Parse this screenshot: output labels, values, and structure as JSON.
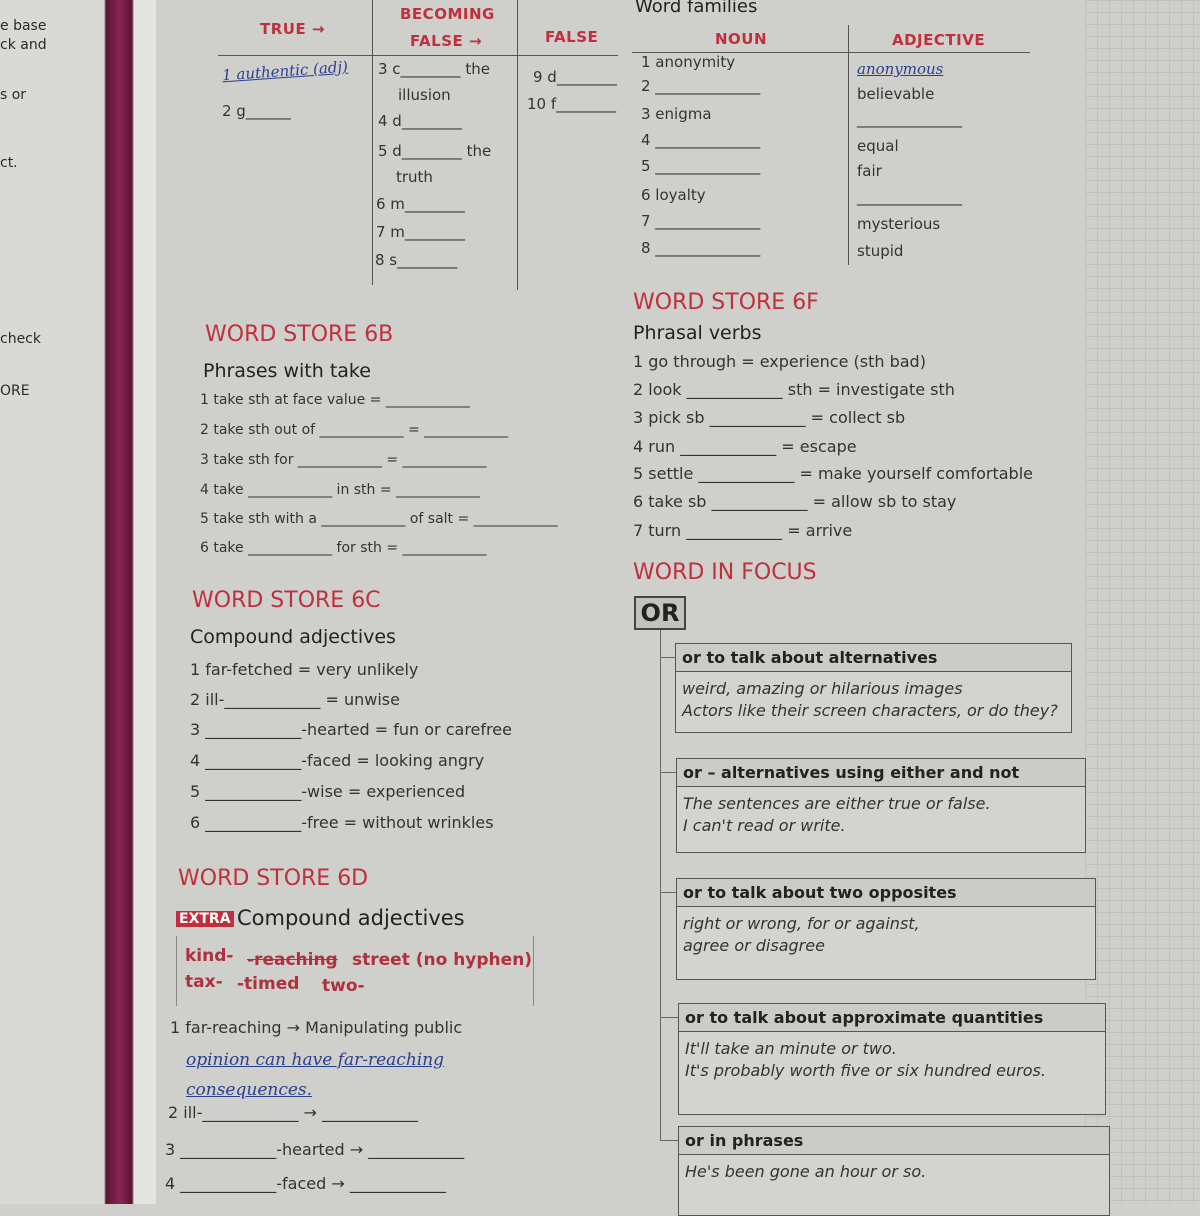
{
  "left_page": {
    "fragments": [
      "e base",
      "ck and",
      "s or",
      "ct.",
      "check",
      "ORE"
    ]
  },
  "truth_table": {
    "header_truth": "TRUE →",
    "header_becoming_1": "BECOMING",
    "header_becoming_2": "FALSE →",
    "header_false": "FALSE",
    "true_items": [
      "1 authentic (adj)",
      "2 g______"
    ],
    "becoming_items": [
      "3 c________ the",
      "illusion",
      "4 d________",
      "5 d________ the",
      "truth",
      "6 m________",
      "7 m________",
      "8 s________"
    ],
    "false_items": [
      "9 d________",
      "10 f________"
    ]
  },
  "word_families": {
    "title": "Word families",
    "noun_header": "NOUN",
    "adjective_header": "ADJECTIVE",
    "nouns": [
      "1  anonymity",
      "2  ______________",
      "3  enigma",
      "4  ______________",
      "5  ______________",
      "6  loyalty",
      "7  ______________",
      "8  ______________"
    ],
    "adjectives": [
      "anonymous",
      "believable",
      "______________",
      "equal",
      "fair",
      "______________",
      "mysterious",
      "stupid"
    ]
  },
  "ws6b": {
    "title": "WORD STORE 6B",
    "subtitle": "Phrases with take",
    "items": [
      "1  take sth at face value = ____________",
      "2  take sth out of ____________ = ____________",
      "3  take sth for ____________ = ____________",
      "4  take ____________ in sth = ____________",
      "5  take sth with a ____________ of salt = ____________",
      "6  take ____________ for sth = ____________"
    ]
  },
  "ws6c": {
    "title": "WORD STORE 6C",
    "subtitle": "Compound adjectives",
    "items": [
      "1  far-fetched = very unlikely",
      "2  ill-____________ = unwise",
      "3  ____________-hearted = fun or carefree",
      "4  ____________-faced = looking angry",
      "5  ____________-wise = experienced",
      "6  ____________-free = without wrinkles"
    ]
  },
  "ws6d": {
    "title": "WORD STORE 6D",
    "badge": "EXTRA",
    "subtitle": "Compound adjectives",
    "box_words": [
      "kind-",
      "-reaching",
      "street (no hyphen)",
      "tax-",
      "-timed",
      "two-"
    ],
    "items": [
      "1  far-reaching → Manipulating public",
      "opinion can have far-reaching",
      "consequences.",
      "2  ill-____________ → ____________",
      "3  ____________-hearted → ____________",
      "4  ____________-faced → ____________"
    ]
  },
  "ws6f": {
    "title": "WORD STORE 6F",
    "subtitle": "Phrasal verbs",
    "items": [
      "1  go through = experience (sth bad)",
      "2  look ____________ sth = investigate sth",
      "3  pick sb ____________ = collect sb",
      "4  run ____________ = escape",
      "5  settle ____________ = make yourself comfortable",
      "6  take sb ____________ = allow sb to stay",
      "7  turn ____________ = arrive"
    ]
  },
  "word_in_focus": {
    "title": "WORD IN FOCUS",
    "word": "OR",
    "boxes": [
      {
        "header": "or to talk about alternatives",
        "lines": [
          "weird, amazing or hilarious images",
          "Actors like their screen characters, or do they?"
        ]
      },
      {
        "header": "or – alternatives using either and not",
        "lines": [
          "The sentences are either true or false.",
          "I can't read or write."
        ]
      },
      {
        "header": "or to talk about two opposites",
        "lines": [
          "right or wrong, for or against,",
          "agree or disagree"
        ]
      },
      {
        "header": "or to talk about approximate quantities",
        "lines": [
          "It'll take an minute or two.",
          "It's probably worth five or six hundred euros."
        ]
      },
      {
        "header": "or in phrases",
        "lines": [
          "He's been gone an hour or so."
        ]
      }
    ]
  },
  "colors": {
    "accent_red": "#c0303c",
    "handwriting_blue": "#2b3f8f",
    "spine": "#6b1a3a"
  }
}
